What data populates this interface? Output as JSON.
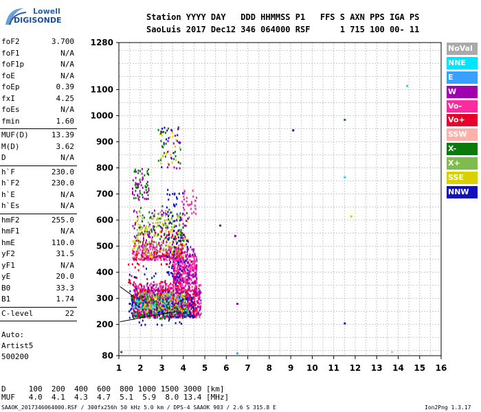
{
  "logo": {
    "line1": "Lowell",
    "line2": "DIGISONDE"
  },
  "header": {
    "row1": "Station YYYY DAY   DDD HHMMSS P1   FFS S AXN PPS IGA PS",
    "row2": "SaoLuis 2017 Dec12 346 064000 RSF      1 715 100 00- 11"
  },
  "params": [
    {
      "key": "foF2",
      "val": "3.700"
    },
    {
      "key": "foF1",
      "val": "N/A"
    },
    {
      "key": "foF1p",
      "val": "N/A"
    },
    {
      "key": "foE",
      "val": "N/A"
    },
    {
      "key": "foEp",
      "val": "0.39"
    },
    {
      "key": "fxI",
      "val": "4.25"
    },
    {
      "key": "foEs",
      "val": "N/A"
    },
    {
      "key": "fmin",
      "val": "1.60"
    },
    {
      "key": "MUF(D)",
      "val": "13.39",
      "sep": true
    },
    {
      "key": "M(D)",
      "val": "3.62"
    },
    {
      "key": "D",
      "val": "N/A"
    },
    {
      "key": "h`F",
      "val": "230.0",
      "sep": true
    },
    {
      "key": "h`F2",
      "val": "230.0"
    },
    {
      "key": "h`E",
      "val": "N/A"
    },
    {
      "key": "h`Es",
      "val": "N/A"
    },
    {
      "key": "hmF2",
      "val": "255.0",
      "sep": true
    },
    {
      "key": "hmF1",
      "val": "N/A"
    },
    {
      "key": "hmE",
      "val": "110.0"
    },
    {
      "key": "yF2",
      "val": "31.5"
    },
    {
      "key": "yF1",
      "val": "N/A"
    },
    {
      "key": "yE",
      "val": "20.0"
    },
    {
      "key": "B0",
      "val": "33.3"
    },
    {
      "key": "B1",
      "val": "1.74"
    },
    {
      "key": "C-level",
      "val": "22",
      "sep": true
    }
  ],
  "auto": {
    "line1": "Auto:",
    "line2": "Artist5",
    "line3": "500200"
  },
  "legend": [
    {
      "label": "NoVal",
      "color": "#aaaaaa"
    },
    {
      "label": "NNE",
      "color": "#00e5ff"
    },
    {
      "label": "E",
      "color": "#3aa0ff"
    },
    {
      "label": "W",
      "color": "#a000b0"
    },
    {
      "label": "Vo-",
      "color": "#ff2aa0"
    },
    {
      "label": "Vo+",
      "color": "#e8002a"
    },
    {
      "label": "SSW",
      "color": "#ffb0a8"
    },
    {
      "label": "X-",
      "color": "#0a7a0a"
    },
    {
      "label": "X+",
      "color": "#80bb50"
    },
    {
      "label": "SSE",
      "color": "#d8d000"
    },
    {
      "label": "NNW",
      "color": "#1010c0"
    }
  ],
  "footer": {
    "d_row": "D     100  200  400  600  800 1000 1500 3000 [km]",
    "muf_row": "MUF   4.0  4.1  4.3  4.7  5.1  5.9  8.0 13.4 [MHz]",
    "file_info": "SAAOK_2017346064000.RSF / 300fx256h 50 kHz 5.0 km / DPS-4 SAAOK 903 / 2.6 S 315.8 E",
    "version": "Ion2Png 1.3.17"
  },
  "chart_data": {
    "type": "scatter",
    "xlim": [
      1,
      16
    ],
    "ylim": [
      80,
      1280
    ],
    "x_ticks": [
      "1",
      "2",
      "3",
      "4",
      "5",
      "6",
      "7",
      "8",
      "9",
      "10",
      "11",
      "12",
      "13",
      "14",
      "15",
      "16"
    ],
    "y_ticks": [
      "80",
      "200",
      "300",
      "400",
      "500",
      "600",
      "700",
      "800",
      "900",
      "1000",
      "1100",
      "1280"
    ],
    "y_tick_values": [
      80,
      200,
      300,
      400,
      500,
      600,
      700,
      800,
      900,
      1000,
      1100,
      1280
    ],
    "grid": true,
    "legend_placement": "right",
    "regions": [
      {
        "color": "#ff2aa0",
        "x": [
          1.6,
          4.8
        ],
        "y": [
          230,
          360
        ],
        "n": 700
      },
      {
        "color": "#a000b0",
        "x": [
          1.6,
          4.8
        ],
        "y": [
          240,
          350
        ],
        "n": 260
      },
      {
        "color": "#e8002a",
        "x": [
          1.6,
          4.6
        ],
        "y": [
          235,
          340
        ],
        "n": 260
      },
      {
        "color": "#1010c0",
        "x": [
          1.5,
          4.5
        ],
        "y": [
          230,
          310
        ],
        "n": 160
      },
      {
        "color": "#00e5ff",
        "x": [
          1.6,
          4.2
        ],
        "y": [
          240,
          320
        ],
        "n": 80
      },
      {
        "color": "#0a7a0a",
        "x": [
          1.5,
          4.2
        ],
        "y": [
          225,
          320
        ],
        "n": 100
      },
      {
        "color": "#80bb50",
        "x": [
          1.8,
          4.2
        ],
        "y": [
          240,
          330
        ],
        "n": 80
      },
      {
        "color": "#d8d000",
        "x": [
          2.0,
          4.1
        ],
        "y": [
          250,
          320
        ],
        "n": 60
      },
      {
        "color": "#ff2aa0",
        "x": [
          3.5,
          4.6
        ],
        "y": [
          360,
          470
        ],
        "n": 240
      },
      {
        "color": "#a000b0",
        "x": [
          3.5,
          4.6
        ],
        "y": [
          360,
          500
        ],
        "n": 120
      },
      {
        "color": "#ff2aa0",
        "x": [
          1.6,
          4.0
        ],
        "y": [
          450,
          510
        ],
        "n": 200
      },
      {
        "color": "#d8d000",
        "x": [
          1.6,
          4.2
        ],
        "y": [
          460,
          620
        ],
        "n": 130
      },
      {
        "color": "#a000b0",
        "x": [
          1.6,
          4.2
        ],
        "y": [
          450,
          640
        ],
        "n": 130
      },
      {
        "color": "#80bb50",
        "x": [
          1.8,
          4.0
        ],
        "y": [
          480,
          640
        ],
        "n": 90
      },
      {
        "color": "#e8002a",
        "x": [
          1.7,
          4.0
        ],
        "y": [
          450,
          560
        ],
        "n": 70
      },
      {
        "color": "#0a7a0a",
        "x": [
          1.8,
          4.0
        ],
        "y": [
          520,
          660
        ],
        "n": 50
      },
      {
        "color": "#1010c0",
        "x": [
          3.2,
          4.2
        ],
        "y": [
          380,
          720
        ],
        "n": 80
      },
      {
        "color": "#a000b0",
        "x": [
          1.6,
          2.4
        ],
        "y": [
          680,
          800
        ],
        "n": 40
      },
      {
        "color": "#0a7a0a",
        "x": [
          1.6,
          2.4
        ],
        "y": [
          680,
          800
        ],
        "n": 30
      },
      {
        "color": "#ff2aa0",
        "x": [
          3.8,
          4.6
        ],
        "y": [
          610,
          720
        ],
        "n": 30
      },
      {
        "color": "#1010c0",
        "x": [
          1.4,
          3.9
        ],
        "y": [
          200,
          420
        ],
        "n": 70
      },
      {
        "color": "#e8002a",
        "x": [
          1.4,
          3.9
        ],
        "y": [
          350,
          440
        ],
        "n": 40
      },
      {
        "color": "#d8d000",
        "x": [
          2.8,
          3.9
        ],
        "y": [
          820,
          960
        ],
        "n": 20
      },
      {
        "color": "#0a7a0a",
        "x": [
          2.8,
          3.9
        ],
        "y": [
          820,
          960
        ],
        "n": 20
      },
      {
        "color": "#1010c0",
        "x": [
          2.8,
          3.9
        ],
        "y": [
          800,
          960
        ],
        "n": 15
      },
      {
        "color": "#a000b0",
        "x": [
          2.8,
          3.9
        ],
        "y": [
          800,
          960
        ],
        "n": 15
      }
    ],
    "points": [
      {
        "x": 9.1,
        "y": 945,
        "color": "#1010c0"
      },
      {
        "x": 11.5,
        "y": 985,
        "color": "#0a7a0a"
      },
      {
        "x": 11.5,
        "y": 765,
        "color": "#00e5ff"
      },
      {
        "x": 11.8,
        "y": 615,
        "color": "#d8d000"
      },
      {
        "x": 14.4,
        "y": 1115,
        "color": "#00e5ff"
      },
      {
        "x": 11.5,
        "y": 205,
        "color": "#1010c0"
      },
      {
        "x": 5.7,
        "y": 580,
        "color": "#a000b0"
      },
      {
        "x": 6.4,
        "y": 540,
        "color": "#a000b0"
      },
      {
        "x": 6.5,
        "y": 90,
        "color": "#3aa0ff"
      },
      {
        "x": 13.7,
        "y": 95,
        "color": "#ffb0a8"
      },
      {
        "x": 6.5,
        "y": 280,
        "color": "#a000b0"
      },
      {
        "x": 1.1,
        "y": 95,
        "color": "#0a7a0a"
      }
    ],
    "trace_lines": [
      {
        "points": [
          [
            1.05,
            210
          ],
          [
            2.0,
            225
          ],
          [
            3.0,
            240
          ],
          [
            3.7,
            250
          ]
        ]
      },
      {
        "points": [
          [
            1.05,
            345
          ],
          [
            1.8,
            300
          ]
        ]
      }
    ]
  }
}
